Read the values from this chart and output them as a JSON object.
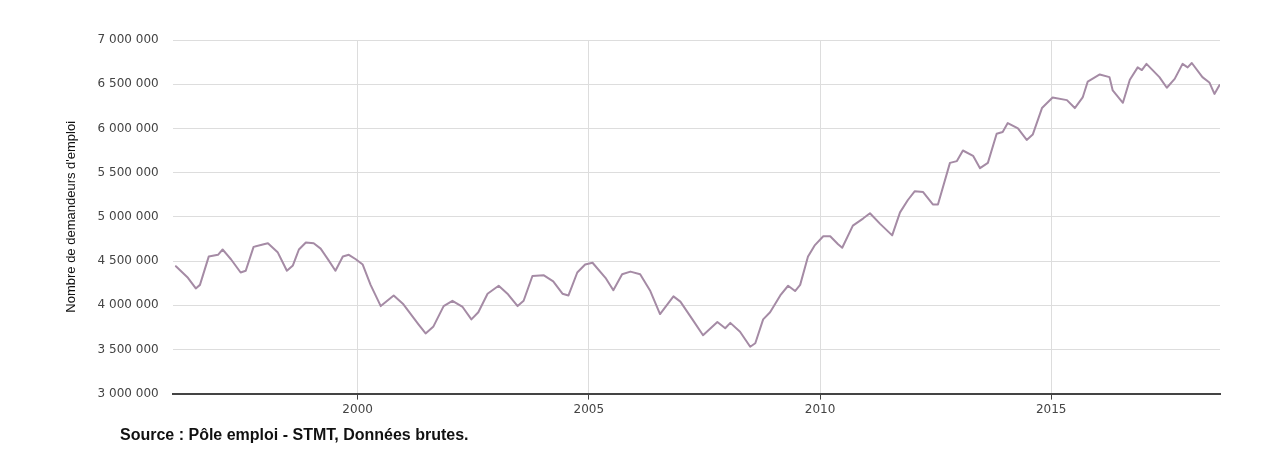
{
  "chart_data": {
    "type": "line",
    "ylabel": "Nombre de demandeurs d'emploi",
    "x": [
      1996.07,
      1996.33,
      1996.5,
      1996.59,
      1996.78,
      1996.98,
      1997.08,
      1997.26,
      1997.47,
      1997.58,
      1997.75,
      1997.97,
      1998.06,
      1998.27,
      1998.47,
      1998.6,
      1998.73,
      1998.88,
      1999.05,
      1999.2,
      1999.37,
      1999.52,
      1999.68,
      1999.81,
      1999.96,
      2000.11,
      2000.28,
      2000.5,
      2000.78,
      2000.99,
      2001.32,
      2001.47,
      2001.64,
      2001.86,
      2002.05,
      2002.27,
      2002.46,
      2002.61,
      2002.81,
      2003.05,
      2003.24,
      2003.46,
      2003.59,
      2003.78,
      2004.02,
      2004.23,
      2004.43,
      2004.56,
      2004.75,
      2004.92,
      2005.08,
      2005.36,
      2005.53,
      2005.72,
      2005.9,
      2006.11,
      2006.33,
      2006.54,
      2006.83,
      2006.98,
      2007.24,
      2007.47,
      2007.78,
      2007.95,
      2008.06,
      2008.27,
      2008.49,
      2008.6,
      2008.77,
      2008.92,
      2009.14,
      2009.31,
      2009.46,
      2009.57,
      2009.74,
      2009.89,
      2010.07,
      2010.22,
      2010.39,
      2010.48,
      2010.71,
      2010.93,
      2011.08,
      2011.3,
      2011.56,
      2011.73,
      2011.9,
      2012.05,
      2012.23,
      2012.44,
      2012.55,
      2012.81,
      2012.96,
      2013.09,
      2013.31,
      2013.46,
      2013.63,
      2013.82,
      2013.95,
      2014.06,
      2014.28,
      2014.47,
      2014.6,
      2014.8,
      2015.03,
      2015.34,
      2015.51,
      2015.68,
      2015.79,
      2016.05,
      2016.26,
      2016.33,
      2016.55,
      2016.7,
      2016.87,
      2016.96,
      2017.06,
      2017.34,
      2017.5,
      2017.67,
      2017.84,
      2017.95,
      2018.04,
      2018.27,
      2018.42,
      2018.53,
      2018.64
    ],
    "series": [
      {
        "color": "#a58ba5",
        "values": [
          4440000,
          4310000,
          4190000,
          4230000,
          4550000,
          4570000,
          4630000,
          4520000,
          4370000,
          4390000,
          4660000,
          4690000,
          4700000,
          4600000,
          4390000,
          4450000,
          4630000,
          4710000,
          4700000,
          4640000,
          4510000,
          4390000,
          4550000,
          4570000,
          4520000,
          4460000,
          4230000,
          3990000,
          4110000,
          4010000,
          3780000,
          3680000,
          3760000,
          3990000,
          4050000,
          3980000,
          3840000,
          3920000,
          4130000,
          4220000,
          4130000,
          3990000,
          4050000,
          4330000,
          4340000,
          4270000,
          4130000,
          4110000,
          4370000,
          4460000,
          4480000,
          4310000,
          4170000,
          4350000,
          4380000,
          4350000,
          4160000,
          3900000,
          4100000,
          4040000,
          3840000,
          3660000,
          3810000,
          3740000,
          3800000,
          3700000,
          3530000,
          3570000,
          3840000,
          3920000,
          4110000,
          4220000,
          4160000,
          4230000,
          4550000,
          4680000,
          4780000,
          4780000,
          4690000,
          4650000,
          4900000,
          4980000,
          5040000,
          4920000,
          4790000,
          5050000,
          5190000,
          5290000,
          5280000,
          5140000,
          5140000,
          5610000,
          5630000,
          5750000,
          5690000,
          5550000,
          5610000,
          5940000,
          5960000,
          6060000,
          6000000,
          5870000,
          5930000,
          6230000,
          6350000,
          6320000,
          6230000,
          6350000,
          6530000,
          6610000,
          6580000,
          6430000,
          6290000,
          6550000,
          6690000,
          6660000,
          6730000,
          6580000,
          6460000,
          6560000,
          6730000,
          6690000,
          6740000,
          6580000,
          6520000,
          6390000,
          6490000
        ]
      }
    ],
    "xlim": [
      1996,
      2018.65
    ],
    "xticks": [
      2000,
      2005,
      2010,
      2015
    ],
    "ylim": [
      3000000,
      7000000
    ],
    "yticks": [
      {
        "value": 3000000,
        "label": "3 000 000"
      },
      {
        "value": 3500000,
        "label": "3 500 000"
      },
      {
        "value": 4000000,
        "label": "4 000 000"
      },
      {
        "value": 4500000,
        "label": "4 500 000"
      },
      {
        "value": 5000000,
        "label": "5 000 000"
      },
      {
        "value": 5500000,
        "label": "5 500 000"
      },
      {
        "value": 6000000,
        "label": "6 000 000"
      },
      {
        "value": 6500000,
        "label": "6 500 000"
      },
      {
        "value": 7000000,
        "label": "7 000 000"
      }
    ],
    "grid": true,
    "legend": false,
    "marker": "none",
    "line_style": "solid",
    "annotations": [
      "Source : Pôle emploi - STMT, Données brutes."
    ]
  }
}
